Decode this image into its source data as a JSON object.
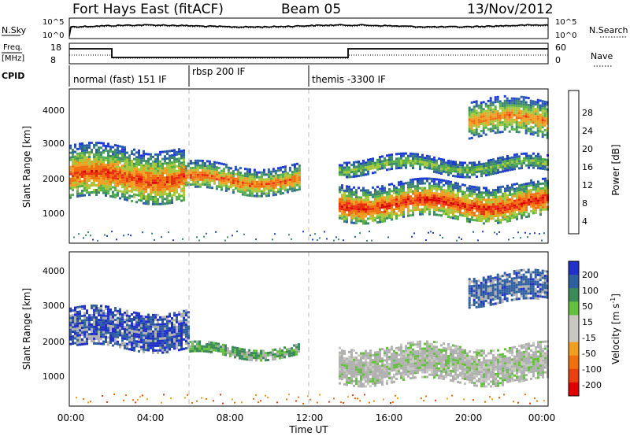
{
  "header": {
    "title": "Fort Hays East (fitACF)",
    "beam": "Beam 05",
    "date": "13/Nov/2012"
  },
  "nsky": {
    "label": "N.Sky",
    "ticks_left": [
      "10^5",
      "10^0"
    ],
    "right_label": "N.Search",
    "ticks_right": [
      "10^5",
      "10^0"
    ]
  },
  "freq": {
    "label_top": "Freq.",
    "label_unit": "[MHz]",
    "ticks_left": [
      "18",
      "8"
    ],
    "right_label": "Nave",
    "ticks_right": [
      "60",
      "0"
    ]
  },
  "cpid": {
    "label": "CPID",
    "segments": [
      {
        "label": "normal (fast) 151 IF",
        "start_h": 0,
        "end_h": 6
      },
      {
        "label": "rbsp 200 IF",
        "start_h": 6,
        "end_h": 12
      },
      {
        "label": "themis -3300 IF",
        "start_h": 12,
        "end_h": 24
      }
    ]
  },
  "colors": {
    "power_scale": [
      "#1f3bd6",
      "#2c5fa8",
      "#3d8a6a",
      "#58b04a",
      "#a6c83a",
      "#f0a020",
      "#f07010",
      "#e83010",
      "#d90000"
    ],
    "velocity_scale": [
      "#2030c8",
      "#305fa0",
      "#3c8a58",
      "#66c040",
      "#c8c8c0",
      "#c8c8c0",
      "#f0a020",
      "#f07010",
      "#e84010",
      "#e00000"
    ],
    "ground_scatter": "#b0b0b0"
  },
  "chart_data": [
    {
      "type": "heatmap",
      "title": "Power",
      "ylabel": "Slant Range [km]",
      "yticks": [
        "4000",
        "3000",
        "2000",
        "1000"
      ],
      "ylim": [
        200,
        4500
      ],
      "xlim": [
        0,
        24
      ],
      "colorbar": {
        "label": "Power [dB]",
        "ticks": [
          "28",
          "24",
          "20",
          "16",
          "12",
          "8",
          "4"
        ],
        "range": [
          0,
          30
        ]
      },
      "series": [
        {
          "start_h": 0.0,
          "end_h": 5.8,
          "range_min_km": 1400,
          "range_max_km": 2900,
          "peak_dB": 26
        },
        {
          "start_h": 5.8,
          "end_h": 11.5,
          "range_min_km": 1650,
          "range_max_km": 2400,
          "peak_dB": 24
        },
        {
          "start_h": 13.5,
          "end_h": 24.0,
          "range_min_km": 850,
          "range_max_km": 1900,
          "peak_dB": 28
        },
        {
          "start_h": 13.5,
          "end_h": 24.0,
          "range_min_km": 2200,
          "range_max_km": 2600,
          "peak_dB": 14
        },
        {
          "start_h": 20.0,
          "end_h": 24.0,
          "range_min_km": 3200,
          "range_max_km": 4200,
          "peak_dB": 22
        }
      ]
    },
    {
      "type": "heatmap",
      "title": "Velocity",
      "ylabel": "Slant Range [km]",
      "xlabel": "Time UT",
      "yticks": [
        "4000",
        "3000",
        "2000",
        "1000"
      ],
      "xticks": [
        "00:00",
        "04:00",
        "08:00",
        "12:00",
        "16:00",
        "20:00",
        "00:00"
      ],
      "ylim": [
        200,
        4500
      ],
      "xlim": [
        0,
        24
      ],
      "colorbar": {
        "label": "Velocity [m s",
        "label_sup": "-1",
        "label_end": "]",
        "ticks": [
          "200",
          "100",
          "50",
          "15",
          "-15",
          "-50",
          "-100",
          "-200"
        ],
        "range": [
          -250,
          250
        ]
      },
      "series": [
        {
          "start_h": 0.0,
          "end_h": 6.0,
          "range_min_km": 1800,
          "range_max_km": 2900,
          "velocity": 200
        },
        {
          "start_h": 6.0,
          "end_h": 11.5,
          "range_min_km": 1600,
          "range_max_km": 1900,
          "velocity": 60
        },
        {
          "start_h": 13.5,
          "end_h": 24.0,
          "range_min_km": 900,
          "range_max_km": 1900,
          "velocity": 0
        },
        {
          "start_h": 20.0,
          "end_h": 24.0,
          "range_min_km": 3100,
          "range_max_km": 3900,
          "velocity": 180
        }
      ]
    }
  ]
}
